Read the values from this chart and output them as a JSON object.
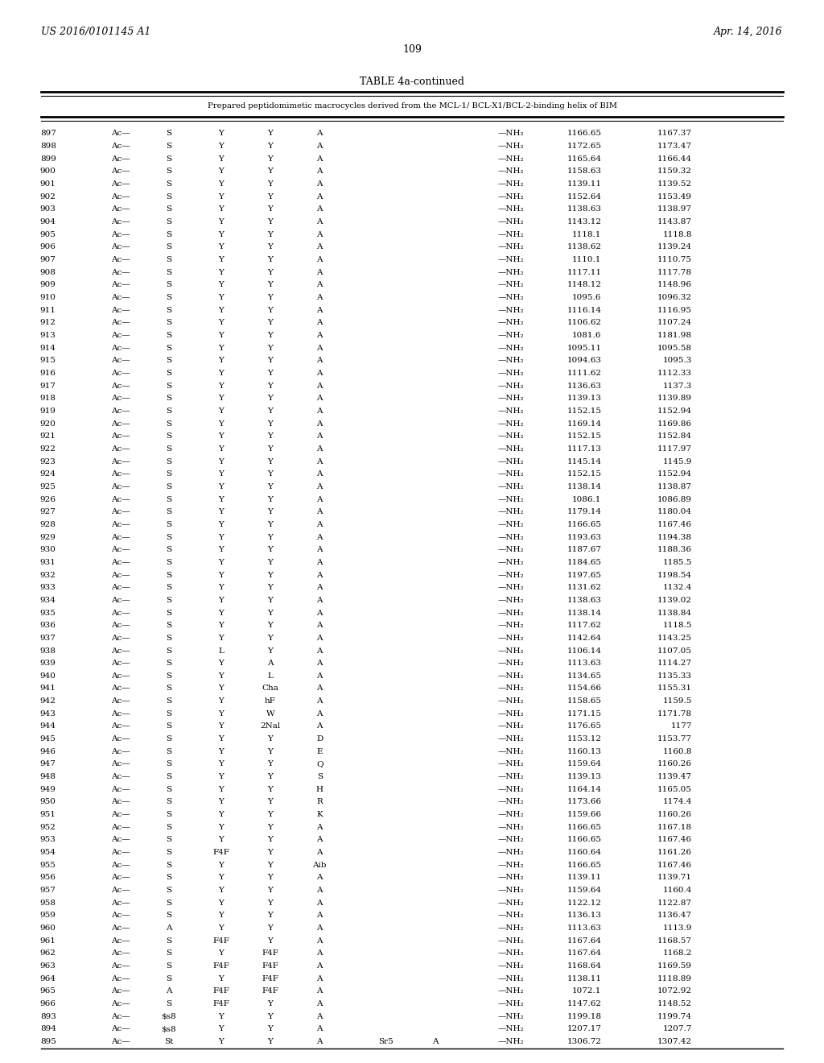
{
  "header_left": "US 2016/0101145 A1",
  "header_right": "Apr. 14, 2016",
  "page_number": "109",
  "table_title": "TABLE 4a-continued",
  "table_subtitle": "Prepared peptidomimetic macrocycles derived from the MCL-1/ BCL-X1/BCL-2-binding helix of BIM",
  "rows": [
    [
      "897",
      "Ac—",
      "S",
      "Y",
      "Y",
      "A",
      "",
      "",
      "—NH₂",
      "1166.65",
      "1167.37"
    ],
    [
      "898",
      "Ac—",
      "S",
      "Y",
      "Y",
      "A",
      "",
      "",
      "—NH₂",
      "1172.65",
      "1173.47"
    ],
    [
      "899",
      "Ac—",
      "S",
      "Y",
      "Y",
      "A",
      "",
      "",
      "—NH₂",
      "1165.64",
      "1166.44"
    ],
    [
      "900",
      "Ac—",
      "S",
      "Y",
      "Y",
      "A",
      "",
      "",
      "—NH₂",
      "1158.63",
      "1159.32"
    ],
    [
      "901",
      "Ac—",
      "S",
      "Y",
      "Y",
      "A",
      "",
      "",
      "—NH₂",
      "1139.11",
      "1139.52"
    ],
    [
      "902",
      "Ac—",
      "S",
      "Y",
      "Y",
      "A",
      "",
      "",
      "—NH₂",
      "1152.64",
      "1153.49"
    ],
    [
      "903",
      "Ac—",
      "S",
      "Y",
      "Y",
      "A",
      "",
      "",
      "—NH₂",
      "1138.63",
      "1138.97"
    ],
    [
      "904",
      "Ac—",
      "S",
      "Y",
      "Y",
      "A",
      "",
      "",
      "—NH₂",
      "1143.12",
      "1143.87"
    ],
    [
      "905",
      "Ac—",
      "S",
      "Y",
      "Y",
      "A",
      "",
      "",
      "—NH₂",
      "1118.1",
      "1118.8"
    ],
    [
      "906",
      "Ac—",
      "S",
      "Y",
      "Y",
      "A",
      "",
      "",
      "—NH₂",
      "1138.62",
      "1139.24"
    ],
    [
      "907",
      "Ac—",
      "S",
      "Y",
      "Y",
      "A",
      "",
      "",
      "—NH₂",
      "1110.1",
      "1110.75"
    ],
    [
      "908",
      "Ac—",
      "S",
      "Y",
      "Y",
      "A",
      "",
      "",
      "—NH₂",
      "1117.11",
      "1117.78"
    ],
    [
      "909",
      "Ac—",
      "S",
      "Y",
      "Y",
      "A",
      "",
      "",
      "—NH₂",
      "1148.12",
      "1148.96"
    ],
    [
      "910",
      "Ac—",
      "S",
      "Y",
      "Y",
      "A",
      "",
      "",
      "—NH₂",
      "1095.6",
      "1096.32"
    ],
    [
      "911",
      "Ac—",
      "S",
      "Y",
      "Y",
      "A",
      "",
      "",
      "—NH₂",
      "1116.14",
      "1116.95"
    ],
    [
      "912",
      "Ac—",
      "S",
      "Y",
      "Y",
      "A",
      "",
      "",
      "—NH₂",
      "1106.62",
      "1107.24"
    ],
    [
      "913",
      "Ac—",
      "S",
      "Y",
      "Y",
      "A",
      "",
      "",
      "—NH₂",
      "1081.6",
      "1181.98"
    ],
    [
      "914",
      "Ac—",
      "S",
      "Y",
      "Y",
      "A",
      "",
      "",
      "—NH₂",
      "1095.11",
      "1095.58"
    ],
    [
      "915",
      "Ac—",
      "S",
      "Y",
      "Y",
      "A",
      "",
      "",
      "—NH₂",
      "1094.63",
      "1095.3"
    ],
    [
      "916",
      "Ac—",
      "S",
      "Y",
      "Y",
      "A",
      "",
      "",
      "—NH₂",
      "1111.62",
      "1112.33"
    ],
    [
      "917",
      "Ac—",
      "S",
      "Y",
      "Y",
      "A",
      "",
      "",
      "—NH₂",
      "1136.63",
      "1137.3"
    ],
    [
      "918",
      "Ac—",
      "S",
      "Y",
      "Y",
      "A",
      "",
      "",
      "—NH₂",
      "1139.13",
      "1139.89"
    ],
    [
      "919",
      "Ac—",
      "S",
      "Y",
      "Y",
      "A",
      "",
      "",
      "—NH₂",
      "1152.15",
      "1152.94"
    ],
    [
      "920",
      "Ac—",
      "S",
      "Y",
      "Y",
      "A",
      "",
      "",
      "—NH₂",
      "1169.14",
      "1169.86"
    ],
    [
      "921",
      "Ac—",
      "S",
      "Y",
      "Y",
      "A",
      "",
      "",
      "—NH₂",
      "1152.15",
      "1152.84"
    ],
    [
      "922",
      "Ac—",
      "S",
      "Y",
      "Y",
      "A",
      "",
      "",
      "—NH₂",
      "1117.13",
      "1117.97"
    ],
    [
      "923",
      "Ac—",
      "S",
      "Y",
      "Y",
      "A",
      "",
      "",
      "—NH₂",
      "1145.14",
      "1145.9"
    ],
    [
      "924",
      "Ac—",
      "S",
      "Y",
      "Y",
      "A",
      "",
      "",
      "—NH₂",
      "1152.15",
      "1152.94"
    ],
    [
      "925",
      "Ac—",
      "S",
      "Y",
      "Y",
      "A",
      "",
      "",
      "—NH₂",
      "1138.14",
      "1138.87"
    ],
    [
      "926",
      "Ac—",
      "S",
      "Y",
      "Y",
      "A",
      "",
      "",
      "—NH₂",
      "1086.1",
      "1086.89"
    ],
    [
      "927",
      "Ac—",
      "S",
      "Y",
      "Y",
      "A",
      "",
      "",
      "—NH₂",
      "1179.14",
      "1180.04"
    ],
    [
      "928",
      "Ac—",
      "S",
      "Y",
      "Y",
      "A",
      "",
      "",
      "—NH₂",
      "1166.65",
      "1167.46"
    ],
    [
      "929",
      "Ac—",
      "S",
      "Y",
      "Y",
      "A",
      "",
      "",
      "—NH₂",
      "1193.63",
      "1194.38"
    ],
    [
      "930",
      "Ac—",
      "S",
      "Y",
      "Y",
      "A",
      "",
      "",
      "—NH₂",
      "1187.67",
      "1188.36"
    ],
    [
      "931",
      "Ac—",
      "S",
      "Y",
      "Y",
      "A",
      "",
      "",
      "—NH₂",
      "1184.65",
      "1185.5"
    ],
    [
      "932",
      "Ac—",
      "S",
      "Y",
      "Y",
      "A",
      "",
      "",
      "—NH₂",
      "1197.65",
      "1198.54"
    ],
    [
      "933",
      "Ac—",
      "S",
      "Y",
      "Y",
      "A",
      "",
      "",
      "—NH₂",
      "1131.62",
      "1132.4"
    ],
    [
      "934",
      "Ac—",
      "S",
      "Y",
      "Y",
      "A",
      "",
      "",
      "—NH₂",
      "1138.63",
      "1139.02"
    ],
    [
      "935",
      "Ac—",
      "S",
      "Y",
      "Y",
      "A",
      "",
      "",
      "—NH₂",
      "1138.14",
      "1138.84"
    ],
    [
      "936",
      "Ac—",
      "S",
      "Y",
      "Y",
      "A",
      "",
      "",
      "—NH₂",
      "1117.62",
      "1118.5"
    ],
    [
      "937",
      "Ac—",
      "S",
      "Y",
      "Y",
      "A",
      "",
      "",
      "—NH₂",
      "1142.64",
      "1143.25"
    ],
    [
      "938",
      "Ac—",
      "S",
      "L",
      "Y",
      "A",
      "",
      "",
      "—NH₂",
      "1106.14",
      "1107.05"
    ],
    [
      "939",
      "Ac—",
      "S",
      "Y",
      "A",
      "A",
      "",
      "",
      "—NH₂",
      "1113.63",
      "1114.27"
    ],
    [
      "940",
      "Ac—",
      "S",
      "Y",
      "L",
      "A",
      "",
      "",
      "—NH₂",
      "1134.65",
      "1135.33"
    ],
    [
      "941",
      "Ac—",
      "S",
      "Y",
      "Cha",
      "A",
      "",
      "",
      "—NH₂",
      "1154.66",
      "1155.31"
    ],
    [
      "942",
      "Ac—",
      "S",
      "Y",
      "hF",
      "A",
      "",
      "",
      "—NH₂",
      "1158.65",
      "1159.5"
    ],
    [
      "943",
      "Ac—",
      "S",
      "Y",
      "W",
      "A",
      "",
      "",
      "—NH₂",
      "1171.15",
      "1171.78"
    ],
    [
      "944",
      "Ac—",
      "S",
      "Y",
      "2Nal",
      "A",
      "",
      "",
      "—NH₂",
      "1176.65",
      "1177"
    ],
    [
      "945",
      "Ac—",
      "S",
      "Y",
      "Y",
      "D",
      "",
      "",
      "—NH₂",
      "1153.12",
      "1153.77"
    ],
    [
      "946",
      "Ac—",
      "S",
      "Y",
      "Y",
      "E",
      "",
      "",
      "—NH₂",
      "1160.13",
      "1160.8"
    ],
    [
      "947",
      "Ac—",
      "S",
      "Y",
      "Y",
      "Q",
      "",
      "",
      "—NH₂",
      "1159.64",
      "1160.26"
    ],
    [
      "948",
      "Ac—",
      "S",
      "Y",
      "Y",
      "S",
      "",
      "",
      "—NH₂",
      "1139.13",
      "1139.47"
    ],
    [
      "949",
      "Ac—",
      "S",
      "Y",
      "Y",
      "H",
      "",
      "",
      "—NH₂",
      "1164.14",
      "1165.05"
    ],
    [
      "950",
      "Ac—",
      "S",
      "Y",
      "Y",
      "R",
      "",
      "",
      "—NH₂",
      "1173.66",
      "1174.4"
    ],
    [
      "951",
      "Ac—",
      "S",
      "Y",
      "Y",
      "K",
      "",
      "",
      "—NH₂",
      "1159.66",
      "1160.26"
    ],
    [
      "952",
      "Ac—",
      "S",
      "Y",
      "Y",
      "A",
      "",
      "",
      "—NH₂",
      "1166.65",
      "1167.18"
    ],
    [
      "953",
      "Ac—",
      "S",
      "Y",
      "Y",
      "A",
      "",
      "",
      "—NH₂",
      "1166.65",
      "1167.46"
    ],
    [
      "954",
      "Ac—",
      "S",
      "F4F",
      "Y",
      "A",
      "",
      "",
      "—NH₂",
      "1160.64",
      "1161.26"
    ],
    [
      "955",
      "Ac—",
      "S",
      "Y",
      "Y",
      "Aib",
      "",
      "",
      "—NH₂",
      "1166.65",
      "1167.46"
    ],
    [
      "956",
      "Ac—",
      "S",
      "Y",
      "Y",
      "A",
      "",
      "",
      "—NH₂",
      "1139.11",
      "1139.71"
    ],
    [
      "957",
      "Ac—",
      "S",
      "Y",
      "Y",
      "A",
      "",
      "",
      "—NH₂",
      "1159.64",
      "1160.4"
    ],
    [
      "958",
      "Ac—",
      "S",
      "Y",
      "Y",
      "A",
      "",
      "",
      "—NH₂",
      "1122.12",
      "1122.87"
    ],
    [
      "959",
      "Ac—",
      "S",
      "Y",
      "Y",
      "A",
      "",
      "",
      "—NH₂",
      "1136.13",
      "1136.47"
    ],
    [
      "960",
      "Ac—",
      "A",
      "Y",
      "Y",
      "A",
      "",
      "",
      "—NH₂",
      "1113.63",
      "1113.9"
    ],
    [
      "961",
      "Ac—",
      "S",
      "F4F",
      "Y",
      "A",
      "",
      "",
      "—NH₂",
      "1167.64",
      "1168.57"
    ],
    [
      "962",
      "Ac—",
      "S",
      "Y",
      "F4F",
      "A",
      "",
      "",
      "—NH₂",
      "1167.64",
      "1168.2"
    ],
    [
      "963",
      "Ac—",
      "S",
      "F4F",
      "F4F",
      "A",
      "",
      "",
      "—NH₂",
      "1168.64",
      "1169.59"
    ],
    [
      "964",
      "Ac—",
      "S",
      "Y",
      "F4F",
      "A",
      "",
      "",
      "—NH₂",
      "1138.11",
      "1118.89"
    ],
    [
      "965",
      "Ac—",
      "A",
      "F4F",
      "F4F",
      "A",
      "",
      "",
      "—NH₂",
      "1072.1",
      "1072.92"
    ],
    [
      "966",
      "Ac—",
      "S",
      "F4F",
      "Y",
      "A",
      "",
      "",
      "—NH₂",
      "1147.62",
      "1148.52"
    ],
    [
      "893",
      "Ac—",
      "$s8",
      "Y",
      "Y",
      "A",
      "",
      "",
      "—NH₂",
      "1199.18",
      "1199.74"
    ],
    [
      "894",
      "Ac—",
      "$s8",
      "Y",
      "Y",
      "A",
      "",
      "",
      "—NH₂",
      "1207.17",
      "1207.7"
    ],
    [
      "895",
      "Ac—",
      "St",
      "Y",
      "Y",
      "A",
      "Sr5",
      "A",
      "—NH₂",
      "1306.72",
      "1307.42"
    ]
  ],
  "background_color": "#ffffff",
  "text_color": "#000000",
  "font_size": 7.5,
  "header_font_size": 9,
  "title_font_size": 9
}
